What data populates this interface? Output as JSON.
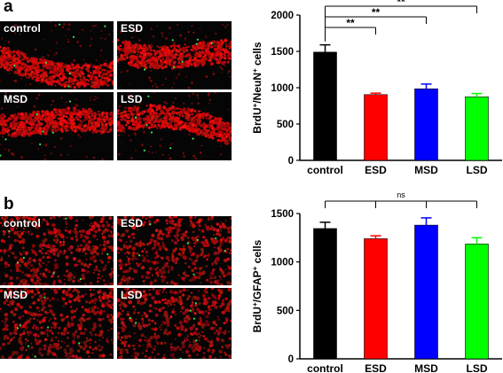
{
  "panels": [
    {
      "letter": "a",
      "images": [
        {
          "label": "control",
          "style": "layer"
        },
        {
          "label": "ESD",
          "style": "layer"
        },
        {
          "label": "MSD",
          "style": "layer"
        },
        {
          "label": "LSD",
          "style": "layer"
        }
      ]
    },
    {
      "letter": "b",
      "images": [
        {
          "label": "control",
          "style": "diffuse"
        },
        {
          "label": "ESD",
          "style": "diffuse"
        },
        {
          "label": "MSD",
          "style": "diffuse"
        },
        {
          "label": "LSD",
          "style": "diffuse"
        }
      ]
    }
  ],
  "chart_data": [
    {
      "type": "bar",
      "ylabel_main": "BrdU",
      "ylabel_mid": "/NeuN",
      "ylabel_end": " cells",
      "ylabel_sup": "+",
      "categories": [
        "control",
        "ESD",
        "MSD",
        "LSD"
      ],
      "values": [
        1490,
        905,
        985,
        875
      ],
      "errors": [
        100,
        20,
        65,
        45
      ],
      "colors": [
        "#000000",
        "#ff0000",
        "#0000ff",
        "#00ff00"
      ],
      "ylim": [
        0,
        2000
      ],
      "yticks": [
        0,
        500,
        1000,
        1500,
        2000
      ],
      "significance": [
        {
          "from": 0,
          "to": 1,
          "label": "**"
        },
        {
          "from": 0,
          "to": 2,
          "label": "**"
        },
        {
          "from": 0,
          "to": 3,
          "label": "**"
        }
      ]
    },
    {
      "type": "bar",
      "ylabel_main": "BrdU",
      "ylabel_mid": "/GFAP",
      "ylabel_end": " cells",
      "ylabel_sup": "+",
      "categories": [
        "control",
        "ESD",
        "MSD",
        "LSD"
      ],
      "values": [
        1345,
        1240,
        1380,
        1185
      ],
      "errors": [
        65,
        30,
        75,
        65
      ],
      "colors": [
        "#000000",
        "#ff0000",
        "#0000ff",
        "#00ff00"
      ],
      "ylim": [
        0,
        1500
      ],
      "yticks": [
        0,
        500,
        1000,
        1500
      ],
      "significance": [
        {
          "from": 0,
          "to": 3,
          "label": "ns",
          "bracket_all": true
        }
      ]
    }
  ]
}
